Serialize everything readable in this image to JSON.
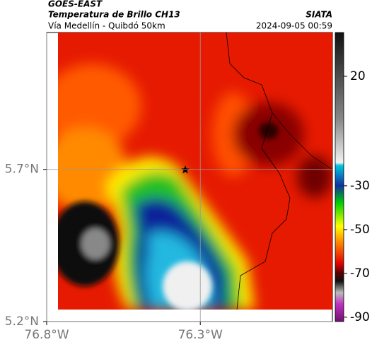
{
  "header": {
    "satellite": "GOES-EAST",
    "product": "Temperatura de Brillo CH13",
    "source": "SIATA",
    "subtitle": "Vía Medellín - Quibdó 50km",
    "datetime": "2024-09-05 00:59"
  },
  "map": {
    "xlim": [
      -76.8,
      -75.87
    ],
    "ylim": [
      5.2,
      6.15
    ],
    "xticks": [
      {
        "value": -76.8,
        "label": "76.8°W"
      },
      {
        "value": -76.3,
        "label": "76.3°W"
      }
    ],
    "yticks": [
      {
        "value": 5.2,
        "label": "5.2°N"
      },
      {
        "value": 5.7,
        "label": "5.7°N"
      }
    ],
    "grid": true
  },
  "colorbar": {
    "lim": [
      -92,
      40
    ],
    "ticks": [
      20,
      -30,
      -50,
      -70,
      -90
    ]
  }
}
